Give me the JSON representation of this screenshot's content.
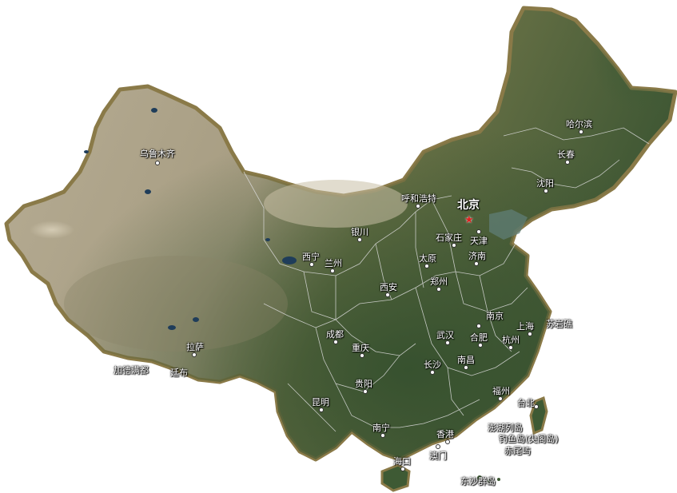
{
  "map": {
    "colors": {
      "land_dry": "#b8ad94",
      "land_green": "#3e5a34",
      "border": "#7a6a3e",
      "province_line": "#d8d8d8",
      "sea": "#ffffff"
    },
    "capital": {
      "name": "北京",
      "marker": "red-star"
    },
    "cities": [
      "乌鲁木齐",
      "哈尔滨",
      "长春",
      "沈阳",
      "呼和浩特",
      "天津",
      "石家庄",
      "银川",
      "太原",
      "济南",
      "西宁",
      "兰州",
      "郑州",
      "西安",
      "南京",
      "上海",
      "苏岩礁",
      "武汉",
      "合肥",
      "杭州",
      "成都",
      "重庆",
      "拉萨",
      "长沙",
      "南昌",
      "加德满都",
      "廷布",
      "贵阳",
      "福州",
      "台北",
      "昆明",
      "南宁",
      "香港",
      "澎湖列岛",
      "钓鱼岛(尖阁岛)",
      "赤尾屿",
      "海口",
      "澳门",
      "东沙群岛"
    ]
  }
}
